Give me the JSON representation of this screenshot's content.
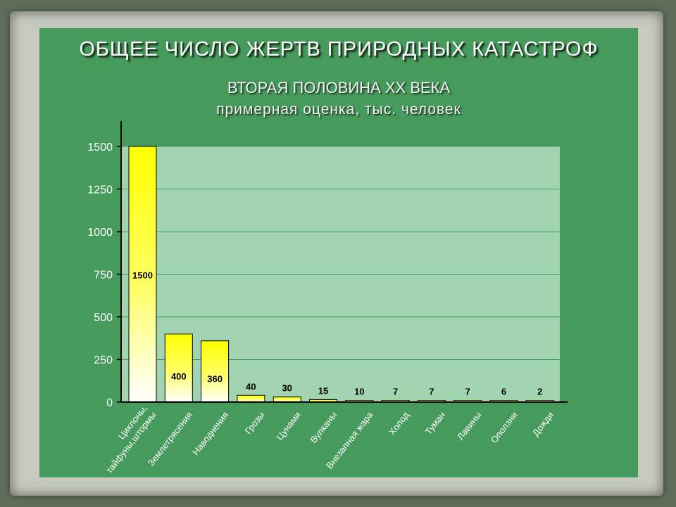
{
  "colors": {
    "background": "#5f6e5a",
    "slide": "#469a5c",
    "plot_area": "#a3d4b1",
    "gridline": "#4aa060",
    "bar_top": "#ffff00",
    "bar_bottom": "#ffffff"
  },
  "chart_data": {
    "type": "bar",
    "title": "ОБЩЕЕ ЧИСЛО ЖЕРТВ ПРИРОДНЫХ КАТАСТРОФ",
    "subtitle": "ВТОРАЯ ПОЛОВИНА XX ВЕКА",
    "subtitle2": "примерная оценка, тыс. человек",
    "categories": [
      [
        "Циклоны,",
        "тайфуны,штормы"
      ],
      [
        "Землетрясения"
      ],
      [
        "Наводнения"
      ],
      [
        "Грозы"
      ],
      [
        "Цунами"
      ],
      [
        "Вулканы"
      ],
      [
        "Внезапная жара"
      ],
      [
        "Холод"
      ],
      [
        "Туман"
      ],
      [
        "Лавины"
      ],
      [
        "Оползни"
      ],
      [
        "Дожди"
      ]
    ],
    "values": [
      1500,
      400,
      360,
      40,
      30,
      15,
      10,
      7,
      7,
      7,
      6,
      2
    ],
    "data_labels": [
      "1500",
      "400",
      "360",
      "40",
      "30",
      "15",
      "10",
      "7",
      "7",
      "7",
      "6",
      "2"
    ],
    "yticks": [
      "0",
      "250",
      "500",
      "750",
      "1000",
      "1250",
      "1500"
    ],
    "ylim": [
      0,
      1500
    ],
    "grid": true,
    "legend": "none"
  }
}
